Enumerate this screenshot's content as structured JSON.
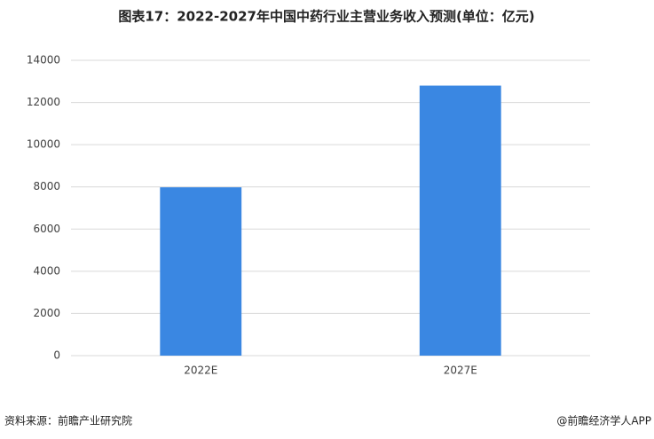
{
  "chart_data": {
    "type": "bar",
    "title": "图表17：2022-2027年中国中药行业主营业务收入预测(单位：亿元)",
    "categories": [
      "2022E",
      "2027E"
    ],
    "values": [
      7980,
      12800
    ],
    "color": "#3a87e2",
    "ylim": [
      0,
      14000
    ],
    "yticks": [
      0,
      2000,
      4000,
      6000,
      8000,
      10000,
      12000,
      14000
    ],
    "grid": true
  },
  "footer": {
    "source": "资料来源：前瞻产业研究院",
    "credit": "@前瞻经济学人APP"
  }
}
